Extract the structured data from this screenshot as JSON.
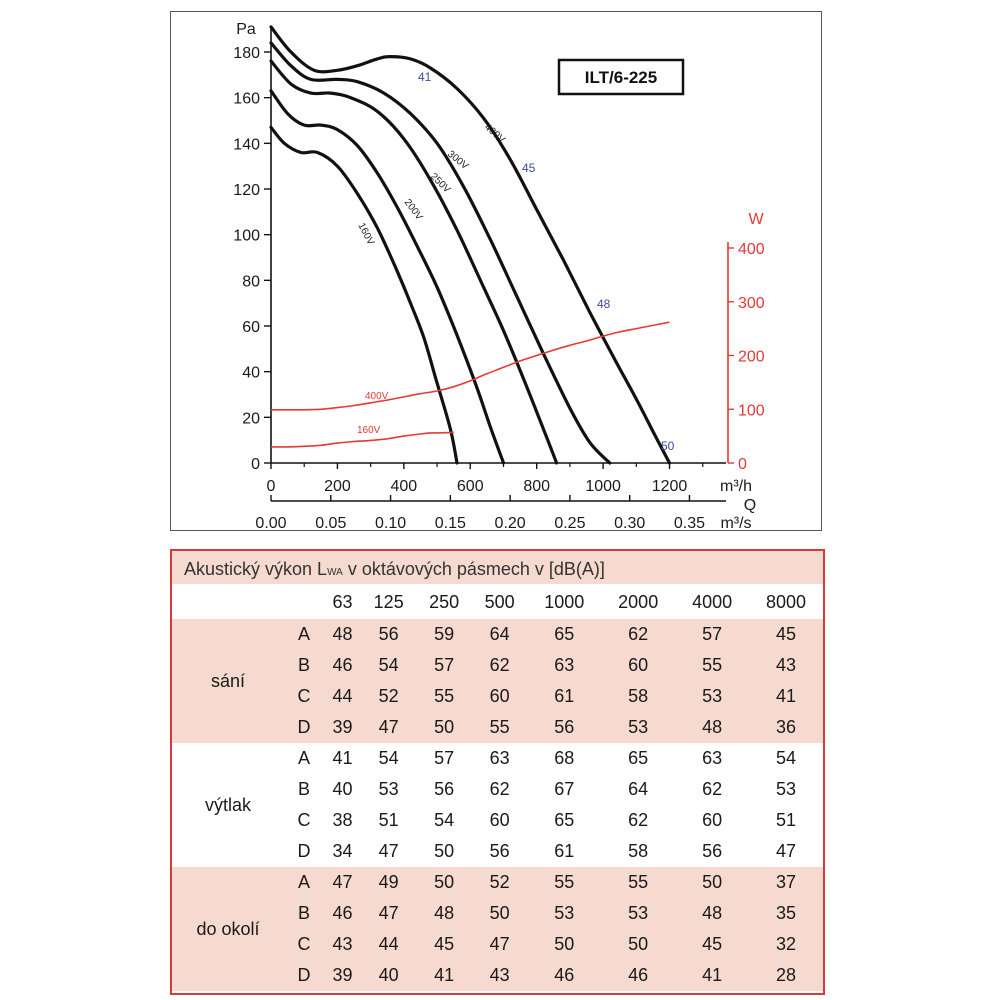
{
  "chart_data": {
    "type": "line",
    "title": "ILT/6-225",
    "y_label": "Pa",
    "y_ticks": [
      "0",
      "20",
      "40",
      "60",
      "80",
      "100",
      "120",
      "140",
      "160",
      "180"
    ],
    "ylim": [
      0,
      190
    ],
    "x_label": "m³/h",
    "x_ticks": [
      "0",
      "200",
      "400",
      "600",
      "800",
      "1000",
      "1200"
    ],
    "xlim": [
      0,
      1370
    ],
    "x2_label_q": "Q",
    "x2_label": "m³/s",
    "x2_ticks": [
      "0.00",
      "0.05",
      "0.10",
      "0.15",
      "0.20",
      "0.25",
      "0.30",
      "0.35"
    ],
    "y2_label": "W",
    "y2_ticks": [
      "0",
      "100",
      "200",
      "300",
      "400"
    ],
    "y2lim": [
      0,
      433
    ],
    "pressure_series": [
      {
        "name": "160V",
        "x": [
          0,
          40,
          90,
          140,
          200,
          260,
          320,
          380,
          420,
          460,
          500,
          540,
          560
        ],
        "y": [
          147,
          140,
          136,
          136,
          130,
          118,
          103,
          84,
          70,
          55,
          35,
          15,
          0
        ]
      },
      {
        "name": "200V",
        "x": [
          0,
          50,
          100,
          150,
          200,
          260,
          320,
          380,
          440,
          500,
          560,
          620,
          660,
          700
        ],
        "y": [
          163,
          153,
          148,
          148,
          146,
          139,
          127,
          112,
          95,
          77,
          56,
          33,
          16,
          0
        ]
      },
      {
        "name": "250V",
        "x": [
          0,
          60,
          120,
          180,
          240,
          320,
          400,
          480,
          560,
          640,
          700,
          760,
          820,
          860
        ],
        "y": [
          176,
          166,
          162,
          162,
          160,
          154,
          142,
          124,
          102,
          77,
          58,
          37,
          15,
          0
        ]
      },
      {
        "name": "300V",
        "x": [
          0,
          60,
          120,
          200,
          260,
          340,
          420,
          500,
          580,
          660,
          740,
          820,
          900,
          960,
          1020
        ],
        "y": [
          184,
          174,
          168,
          168,
          167,
          162,
          153,
          140,
          121,
          98,
          73,
          48,
          24,
          9,
          0
        ]
      },
      {
        "name": "400V",
        "x": [
          0,
          60,
          130,
          200,
          260,
          320,
          360,
          420,
          480,
          560,
          640,
          720,
          800,
          880,
          960,
          1040,
          1100,
          1160,
          1200
        ],
        "y": [
          191,
          180,
          172,
          172,
          174,
          177,
          178,
          177,
          173,
          164,
          151,
          133,
          111,
          89,
          66,
          44,
          28,
          11,
          0
        ]
      }
    ],
    "power_series": [
      {
        "name": "400V",
        "x": [
          0,
          50,
          100,
          150,
          200,
          250,
          300,
          350,
          400,
          450,
          500,
          550,
          600,
          650,
          700,
          750,
          800,
          850,
          900,
          950,
          1000,
          1050,
          1100,
          1150,
          1200
        ],
        "y": [
          99,
          99,
          99,
          100,
          103,
          107,
          112,
          117,
          123,
          129,
          134,
          142,
          153,
          166,
          178,
          190,
          200,
          210,
          219,
          227,
          236,
          244,
          250,
          256,
          262
        ]
      },
      {
        "name": "160V",
        "x": [
          0,
          50,
          100,
          150,
          200,
          250,
          300,
          350,
          400,
          450,
          480,
          500,
          550
        ],
        "y": [
          30,
          30,
          31,
          33,
          37,
          40,
          42,
          45,
          50,
          54,
          56,
          56,
          57
        ]
      }
    ],
    "curve_labels": [
      "160V",
      "200V",
      "250V",
      "300V",
      "400V"
    ],
    "power_labels": [
      "400V",
      "160V"
    ],
    "operating_points": [
      "41",
      "45",
      "48",
      "50"
    ]
  },
  "table": {
    "title_prefix": "Akustický výkon L",
    "title_sub": "WA",
    "title_suffix": " v oktávových pásmech v [dB(A)]",
    "bands": [
      "63",
      "125",
      "250",
      "500",
      "1000",
      "2000",
      "4000",
      "8000"
    ],
    "groups": [
      {
        "name": "sání",
        "rows": [
          {
            "letter": "A",
            "values": [
              "48",
              "56",
              "59",
              "64",
              "65",
              "62",
              "57",
              "45"
            ]
          },
          {
            "letter": "B",
            "values": [
              "46",
              "54",
              "57",
              "62",
              "63",
              "60",
              "55",
              "43"
            ]
          },
          {
            "letter": "C",
            "values": [
              "44",
              "52",
              "55",
              "60",
              "61",
              "58",
              "53",
              "41"
            ]
          },
          {
            "letter": "D",
            "values": [
              "39",
              "47",
              "50",
              "55",
              "56",
              "53",
              "48",
              "36"
            ]
          }
        ]
      },
      {
        "name": "výtlak",
        "rows": [
          {
            "letter": "A",
            "values": [
              "41",
              "54",
              "57",
              "63",
              "68",
              "65",
              "63",
              "54"
            ]
          },
          {
            "letter": "B",
            "values": [
              "40",
              "53",
              "56",
              "62",
              "67",
              "64",
              "62",
              "53"
            ]
          },
          {
            "letter": "C",
            "values": [
              "38",
              "51",
              "54",
              "60",
              "65",
              "62",
              "60",
              "51"
            ]
          },
          {
            "letter": "D",
            "values": [
              "34",
              "47",
              "50",
              "56",
              "61",
              "58",
              "56",
              "47"
            ]
          }
        ]
      },
      {
        "name": "do okolí",
        "rows": [
          {
            "letter": "A",
            "values": [
              "47",
              "49",
              "50",
              "52",
              "55",
              "55",
              "50",
              "37"
            ]
          },
          {
            "letter": "B",
            "values": [
              "46",
              "47",
              "48",
              "50",
              "53",
              "53",
              "48",
              "35"
            ]
          },
          {
            "letter": "C",
            "values": [
              "43",
              "44",
              "45",
              "47",
              "50",
              "50",
              "45",
              "32"
            ]
          },
          {
            "letter": "D",
            "values": [
              "39",
              "40",
              "41",
              "43",
              "46",
              "46",
              "41",
              "28"
            ]
          }
        ]
      }
    ]
  },
  "colors": {
    "pressure_curve": "#111111",
    "power_curve": "#e53935",
    "power_axis": "#e53935",
    "point_label": "#3b4a9c",
    "table_border": "#d63a3a",
    "table_band": "#f6d9cf"
  }
}
